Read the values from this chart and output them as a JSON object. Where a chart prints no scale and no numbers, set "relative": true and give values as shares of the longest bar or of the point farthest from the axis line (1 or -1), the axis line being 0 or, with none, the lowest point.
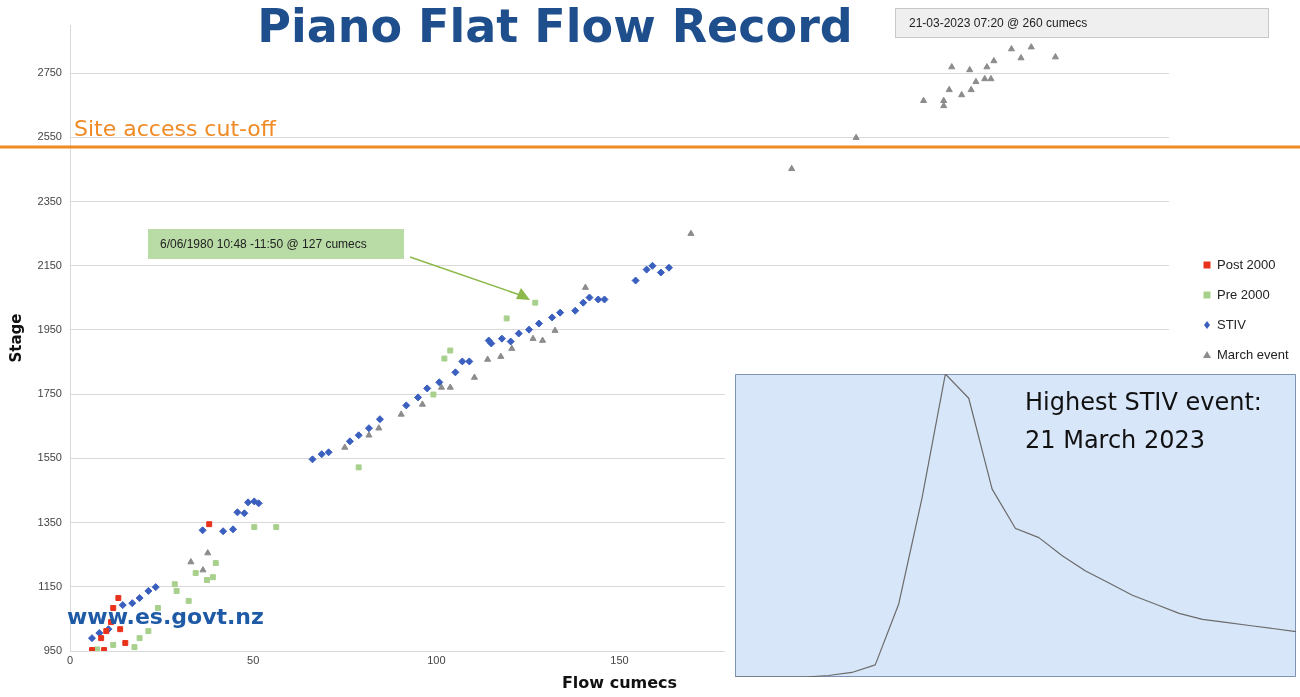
{
  "chart_data": [
    {
      "type": "scatter",
      "title": "Piano Flat Flow Record",
      "xlabel": "Flow cumecs",
      "ylabel": "Stage",
      "xlim": [
        0,
        300
      ],
      "xticks": [
        0,
        50,
        100,
        150
      ],
      "ylim": [
        950,
        2900
      ],
      "yticks": [
        950,
        1150,
        1350,
        1550,
        1750,
        1950,
        2150,
        2350,
        2550,
        2750
      ],
      "grid": "y",
      "legend": "right",
      "series": [
        {
          "name": "Post 2000",
          "color": "#e8321c",
          "marker": "square",
          "x": [
            6,
            8.5,
            9.9,
            11.2,
            11.8,
            13.2,
            13.7,
            15.1,
            38,
            9.3
          ],
          "values": [
            953,
            990,
            1012,
            1040,
            1084,
            1115,
            1018,
            975,
            1345,
            953
          ]
        },
        {
          "name": "Pre 2000",
          "color": "#a8d08d",
          "marker": "square",
          "x": [
            7.4,
            11.8,
            15,
            17.6,
            19,
            21.4,
            23.4,
            24,
            28.6,
            29.1,
            32.4,
            34.3,
            37.4,
            39,
            39.8,
            50.3,
            56.3,
            78.8,
            99.2,
            102.2,
            103.8,
            119.2,
            127
          ],
          "values": [
            955,
            969,
            null,
            962,
            990,
            1012,
            null,
            1084,
            1158,
            1137,
            1106,
            1193,
            1171,
            1180,
            1224,
            1336,
            1336,
            1522,
            1749,
            1861,
            1886,
            1986,
            2035
          ]
        },
        {
          "name": "STIV",
          "color": "#3a5fbf",
          "marker": "diamond",
          "x": [
            6,
            8,
            10.5,
            12.5,
            14.4,
            17,
            19,
            21.4,
            23.4,
            36.2,
            38,
            41.8,
            44.5,
            45.7,
            47.6,
            48.6,
            50.3,
            51.5,
            66.2,
            68.7,
            70.6,
            76.4,
            78.8,
            81.6,
            84.6,
            91.8,
            95,
            97.5,
            100.8,
            105.2,
            107.1,
            109,
            114.3,
            115,
            117.9,
            120.3,
            122.5,
            125.3,
            128,
            131.6,
            133.8,
            137.9,
            140.1,
            141.8,
            144.2,
            145.9,
            154.4,
            157.4,
            159,
            161.3,
            163.5
          ],
          "values": [
            990,
            1006,
            1018,
            null,
            1093,
            1099,
            1115,
            1137,
            1149,
            1326,
            null,
            1323,
            1329,
            1382,
            1379,
            1413,
            1416,
            1410,
            1547,
            1563,
            1569,
            1603,
            1622,
            1644,
            1672,
            1715,
            1740,
            1768,
            1787,
            1818,
            1852,
            1852,
            1917,
            1908,
            1923,
            1914,
            1939,
            1951,
            1970,
            1989,
            2004,
            2010,
            2035,
            2051,
            2045,
            2045,
            2104,
            2138,
            2150,
            2129,
            2144
          ]
        },
        {
          "name": "March event",
          "color": "#8c8c8c",
          "marker": "triangle",
          "x": [
            33,
            36.3,
            37.6,
            75,
            81.6,
            84.3,
            90.4,
            96.2,
            101.4,
            103.8,
            110.4,
            114,
            117.6,
            120.6,
            126.4,
            129,
            132.4,
            140.7,
            169.5,
            197,
            214.6,
            233,
            238.5,
            238.5,
            240,
            240.7,
            243.4,
            245.6,
            246,
            247.3,
            249.7,
            251.4,
            250.3,
            252.2,
            257,
            259.6,
            262.4,
            269
          ],
          "values": [
            1227,
            1202,
            1255,
            1584,
            1622,
            1644,
            1687,
            1718,
            1771,
            1771,
            1802,
            1858,
            1867,
            1892,
            1923,
            1917,
            1948,
            2082,
            2250,
            2452,
            2549,
            2664,
            2664,
            2648,
            2698,
            2769,
            2682,
            2760,
            2698,
            2723,
            2732,
            2732,
            2769,
            2788,
            2825,
            2797,
            2831,
            2800
          ]
        }
      ],
      "ref_lines": [
        {
          "axis": "y",
          "value": 2520,
          "label": "Site access cut-off",
          "color": "#f08a24"
        }
      ],
      "annotations": [
        "6/06/1980 10:48 -11:50 @ 127 cumecs",
        "21-03-2023 07:20 @ 260 cumecs",
        "www.es.govt.nz"
      ]
    },
    {
      "type": "line",
      "relative": true,
      "color": "#6b6b6b",
      "marker": "none",
      "categories": [
        null,
        null,
        null,
        null,
        null,
        null,
        null,
        null,
        null,
        null,
        null,
        null,
        null,
        null,
        null,
        null,
        null,
        null,
        null,
        null,
        null,
        null,
        null,
        null,
        null
      ],
      "values": [
        0,
        0,
        0,
        0,
        0.005,
        0.015,
        0.04,
        0.24,
        0.59,
        1,
        0.92,
        0.62,
        0.49,
        0.46,
        0.4,
        0.35,
        0.31,
        0.27,
        0.24,
        0.21,
        0.19,
        0.18,
        0.17,
        0.16,
        0.15
      ],
      "annotations": [
        "Highest STIV event: 21 March 2023"
      ]
    }
  ]
}
